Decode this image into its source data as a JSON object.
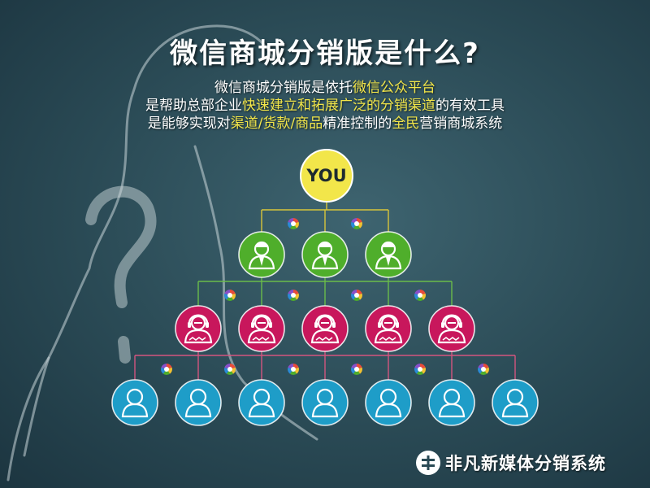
{
  "title": "微信商城分销版是什么?",
  "description": {
    "line1": {
      "t1": "微信商城分销版是依托",
      "h1": "微信公众平台"
    },
    "line2": {
      "t1": "是帮助总部企业",
      "h1": "快速建立和拓展广泛的分销渠道",
      "t2": "的有效工具"
    },
    "line3": {
      "t1": "是能够实现对",
      "h1": "渠道/货款/商品",
      "t2": "精准控制的",
      "h2": "全民",
      "t3": "营销商城系统"
    }
  },
  "diagram": {
    "top_label": "YOU",
    "levels": [
      {
        "name": "level-1",
        "count": 3,
        "color": "#4fae2b",
        "icon": "person-tie-icon"
      },
      {
        "name": "level-2",
        "count": 5,
        "color": "#c8175c",
        "icon": "person-headset-icon"
      },
      {
        "name": "level-3",
        "count": 7,
        "color": "#1e9dc8",
        "icon": "person-icon"
      }
    ],
    "line_colors": [
      "#d8c53a",
      "#6abb4a",
      "#d4557f"
    ],
    "accent_yellow": "#f2e64a"
  },
  "brand": {
    "text": "非凡新媒体分销系统"
  }
}
